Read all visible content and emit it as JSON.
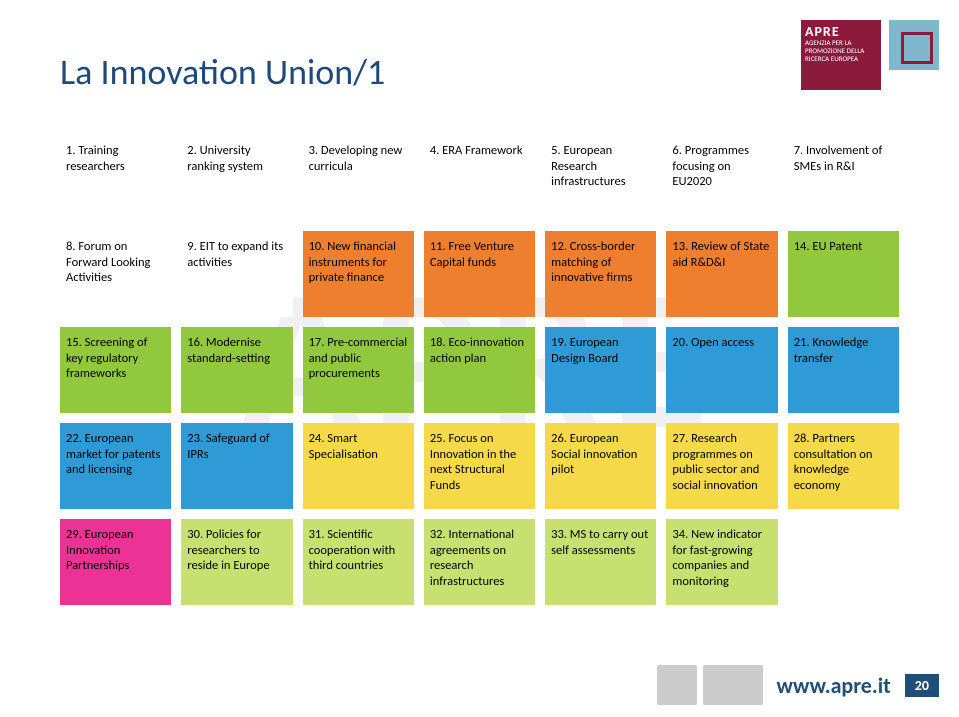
{
  "title": "La Innovation Union/1",
  "watermark": "APRE",
  "url": "www.apre.it",
  "page": "20",
  "apre_text": "AGENZIA PER LA PROMOZIONE DELLA RICERCA EUROPEA",
  "colors": {
    "white": "#ffffff",
    "orange": "#ee7f2e",
    "green": "#92c83e",
    "blue": "#2e9bd6",
    "yellow": "#f5d949",
    "pink": "#ed3296",
    "lime": "#c8e070"
  },
  "boxes": [
    {
      "text": "1. Training researchers",
      "color": "white"
    },
    {
      "text": "2. University ranking system",
      "color": "white"
    },
    {
      "text": "3. Developing new curricula",
      "color": "white"
    },
    {
      "text": "4. ERA Framework",
      "color": "white"
    },
    {
      "text": "5. European Research infrastructures",
      "color": "white"
    },
    {
      "text": "6. Programmes focusing on EU2020",
      "color": "white"
    },
    {
      "text": "7. Involvement of SMEs in R&I",
      "color": "white"
    },
    {
      "text": "8. Forum on Forward Looking Activities",
      "color": "white"
    },
    {
      "text": "9. EIT to expand its activities",
      "color": "white"
    },
    {
      "text": "10. New financial instruments for private finance",
      "color": "orange"
    },
    {
      "text": "11. Free Venture Capital funds",
      "color": "orange"
    },
    {
      "text": "12. Cross-border matching of innovative firms",
      "color": "orange"
    },
    {
      "text": "13. Review of State aid R&D&I",
      "color": "orange"
    },
    {
      "text": "14. EU Patent",
      "color": "green"
    },
    {
      "text": "15. Screening of key regulatory frameworks",
      "color": "green"
    },
    {
      "text": "16. Modernise standard-setting",
      "color": "green"
    },
    {
      "text": "17. Pre-commercial and public procurements",
      "color": "green"
    },
    {
      "text": "18. Eco-innovation action plan",
      "color": "green"
    },
    {
      "text": "19. European Design Board",
      "color": "blue"
    },
    {
      "text": "20. Open access",
      "color": "blue"
    },
    {
      "text": "21. Knowledge transfer",
      "color": "blue"
    },
    {
      "text": "22. European market for patents and licensing",
      "color": "blue"
    },
    {
      "text": "23. Safeguard of IPRs",
      "color": "blue"
    },
    {
      "text": "24. Smart Specialisation",
      "color": "yellow"
    },
    {
      "text": "25. Focus on Innovation in the next Structural Funds",
      "color": "yellow"
    },
    {
      "text": "26. European Social innovation pilot",
      "color": "yellow"
    },
    {
      "text": "27. Research programmes on public sector and social innovation",
      "color": "yellow"
    },
    {
      "text": "28. Partners consultation on knowledge economy",
      "color": "yellow"
    },
    {
      "text": "29. European Innovation Partnerships",
      "color": "pink"
    },
    {
      "text": "30. Policies for researchers to reside in Europe",
      "color": "lime"
    },
    {
      "text": "31. Scientific cooperation with third countries",
      "color": "lime"
    },
    {
      "text": "32. International agreements on research infrastructures",
      "color": "lime"
    },
    {
      "text": "33. MS to carry out self assessments",
      "color": "lime"
    },
    {
      "text": "34. New indicator for fast-growing companies and monitoring",
      "color": "lime"
    }
  ]
}
